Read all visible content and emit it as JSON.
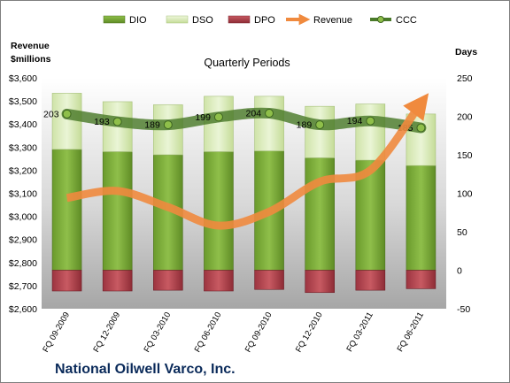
{
  "chart_data": {
    "type": "bar",
    "title": "National Oilwell Varco, Inc.",
    "subtitle": "Quarterly Periods",
    "categories": [
      "FQ 09-2009",
      "FQ 12-2009",
      "FQ 03-2010",
      "FQ 06-2010",
      "FQ 09-2010",
      "FQ 12-2010",
      "FQ 03-2011",
      "FQ 06-2011"
    ],
    "left_axis": {
      "title_line1": "Revenue",
      "title_line2": "$millions",
      "min": 2600,
      "max": 3600,
      "step": 100,
      "ticks": [
        "$2,600",
        "$2,700",
        "$2,800",
        "$2,900",
        "$3,000",
        "$3,100",
        "$3,200",
        "$3,300",
        "$3,400",
        "$3,500",
        "$3,600"
      ]
    },
    "right_axis": {
      "title": "Days",
      "min": -50,
      "max": 250,
      "step": 50,
      "ticks": [
        "-50",
        "0",
        "50",
        "100",
        "150",
        "200",
        "250"
      ]
    },
    "series": [
      {
        "name": "DIO",
        "kind": "stacked-bar",
        "axis": "right",
        "color": "#7aa63a",
        "values": [
          157,
          154,
          150,
          154,
          155,
          146,
          143,
          136
        ]
      },
      {
        "name": "DSO",
        "kind": "stacked-bar",
        "axis": "right",
        "color": "#d9ebb5",
        "values": [
          73,
          65,
          65,
          72,
          71,
          67,
          73,
          67
        ]
      },
      {
        "name": "DPO",
        "kind": "negative-bar",
        "axis": "right",
        "color": "#b5404a",
        "values": [
          -27,
          -27,
          -26,
          -27,
          -25,
          -29,
          -26,
          -24
        ]
      },
      {
        "name": "Revenue",
        "kind": "line",
        "axis": "left",
        "color": "#f08a3e",
        "values": [
          3080,
          3110,
          3040,
          2960,
          3020,
          3150,
          3200,
          3490
        ]
      },
      {
        "name": "CCC",
        "kind": "line",
        "axis": "right",
        "color": "#4a7a2a",
        "values": [
          203,
          193,
          189,
          199,
          204,
          189,
          194,
          185
        ],
        "labels": [
          "203",
          "193",
          "189",
          "199",
          "204",
          "189",
          "194",
          "185"
        ]
      }
    ],
    "legend_position": "top",
    "grid": false
  }
}
